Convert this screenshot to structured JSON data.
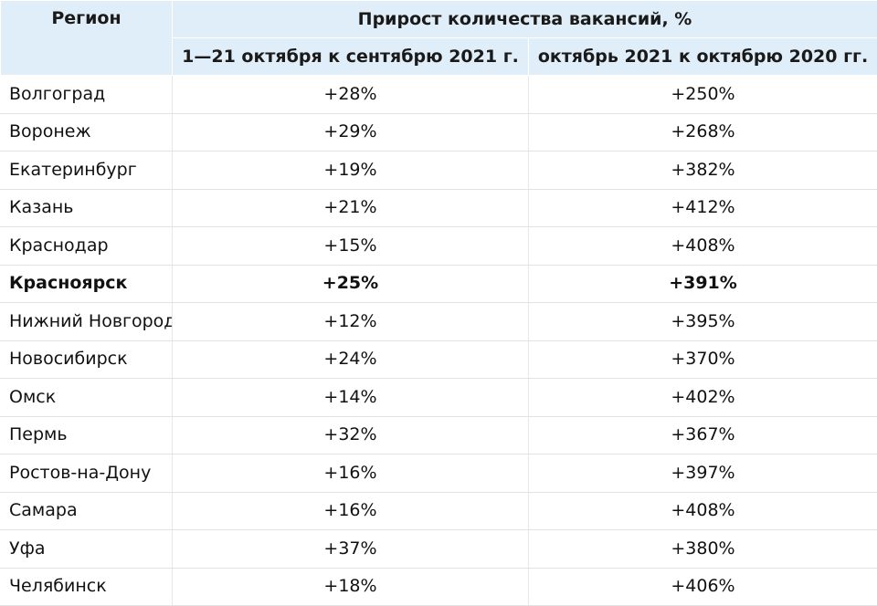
{
  "header": {
    "region": "Регион",
    "group": "Прирост количества вакансий, %",
    "col_sep": "1—21 октября к сентябрю 2021 г.",
    "col_oct": "октябрь 2021 к октябрю 2020 гг."
  },
  "rows": [
    {
      "region": "Волгоград",
      "sep": "+28%",
      "oct": "+250%"
    },
    {
      "region": "Воронеж",
      "sep": "+29%",
      "oct": "+268%"
    },
    {
      "region": "Екатеринбург",
      "sep": "+19%",
      "oct": "+382%"
    },
    {
      "region": "Казань",
      "sep": "+21%",
      "oct": "+412%"
    },
    {
      "region": "Краснодар",
      "sep": "+15%",
      "oct": "+408%"
    },
    {
      "region": "Красноярск",
      "sep": "+25%",
      "oct": "+391%",
      "bold": true
    },
    {
      "region": "Нижний Новгород",
      "sep": "+12%",
      "oct": "+395%"
    },
    {
      "region": "Новосибирск",
      "sep": "+24%",
      "oct": "+370%"
    },
    {
      "region": "Омск",
      "sep": "+14%",
      "oct": "+402%"
    },
    {
      "region": "Пермь",
      "sep": "+32%",
      "oct": "+367%"
    },
    {
      "region": "Ростов-на-Дону",
      "sep": "+16%",
      "oct": "+397%"
    },
    {
      "region": "Самара",
      "sep": "+16%",
      "oct": "+408%"
    },
    {
      "region": "Уфа",
      "sep": "+37%",
      "oct": "+380%"
    },
    {
      "region": "Челябинск",
      "sep": "+18%",
      "oct": "+406%"
    }
  ]
}
